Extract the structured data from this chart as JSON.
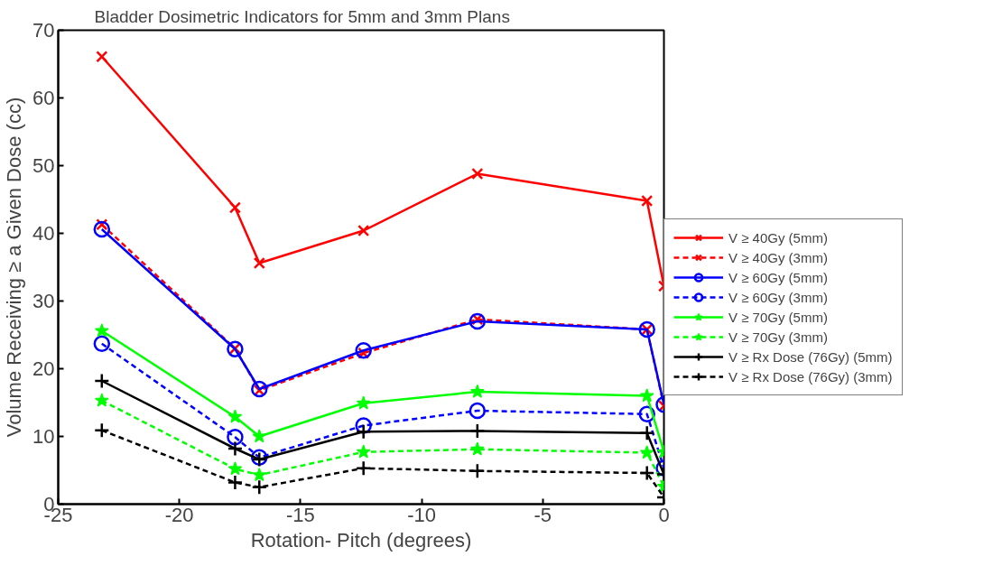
{
  "chart_data": {
    "type": "line",
    "title": "Bladder Dosimetric Indicators for 5mm and 3mm Plans",
    "xlabel": "Rotation- Pitch (degrees)",
    "ylabel": "Volume Receiving ≥ a Given Dose (cc)",
    "x": [
      -23.2,
      -17.7,
      -16.7,
      -12.4,
      -7.7,
      -0.7,
      0
    ],
    "xlim": [
      -25,
      0
    ],
    "xticks": [
      -25,
      -20,
      -15,
      -10,
      -5,
      0
    ],
    "ylim": [
      0,
      70
    ],
    "yticks": [
      0,
      10,
      20,
      30,
      40,
      50,
      60,
      70
    ],
    "grid": false,
    "legend": "right",
    "series": [
      {
        "name": "V ≥ 40Gy (5mm)",
        "color": "#ff0000",
        "marker": "x",
        "line_style": "solid",
        "values": [
          66.1,
          43.8,
          35.6,
          40.4,
          48.8,
          44.8,
          32.2
        ]
      },
      {
        "name": "V ≥ 40Gy (3mm)",
        "color": "#ff0000",
        "marker": "x",
        "line_style": "dashed",
        "values": [
          41.3,
          23.0,
          16.8,
          22.3,
          27.3,
          25.8,
          14.5
        ]
      },
      {
        "name": "V ≥ 60Gy (5mm)",
        "color": "#0000ff",
        "marker": "circle",
        "line_style": "solid",
        "values": [
          40.6,
          22.9,
          17.0,
          22.7,
          27.0,
          25.8,
          14.7
        ]
      },
      {
        "name": "V ≥ 60Gy (3mm)",
        "color": "#0000ff",
        "marker": "circle",
        "line_style": "dashed",
        "values": [
          23.7,
          9.9,
          6.9,
          11.6,
          13.8,
          13.3,
          5.3
        ]
      },
      {
        "name": "V ≥ 70Gy (5mm)",
        "color": "#00ff00",
        "marker": "star",
        "line_style": "solid",
        "values": [
          25.6,
          12.9,
          10.0,
          14.9,
          16.6,
          16.0,
          7.7
        ]
      },
      {
        "name": "V ≥ 70Gy (3mm)",
        "color": "#00ff00",
        "marker": "star",
        "line_style": "dashed",
        "values": [
          15.3,
          5.2,
          4.3,
          7.7,
          8.1,
          7.6,
          2.6
        ]
      },
      {
        "name": "V ≥ Rx Dose (76Gy) (5mm)",
        "color": "#000000",
        "marker": "cross",
        "line_style": "solid",
        "values": [
          18.2,
          8.2,
          6.6,
          10.7,
          10.8,
          10.5,
          4.4
        ]
      },
      {
        "name": "V ≥ Rx Dose (76Gy) (3mm)",
        "color": "#000000",
        "marker": "cross",
        "line_style": "dashed",
        "values": [
          10.9,
          3.2,
          2.5,
          5.3,
          4.9,
          4.6,
          1.0
        ]
      }
    ]
  }
}
